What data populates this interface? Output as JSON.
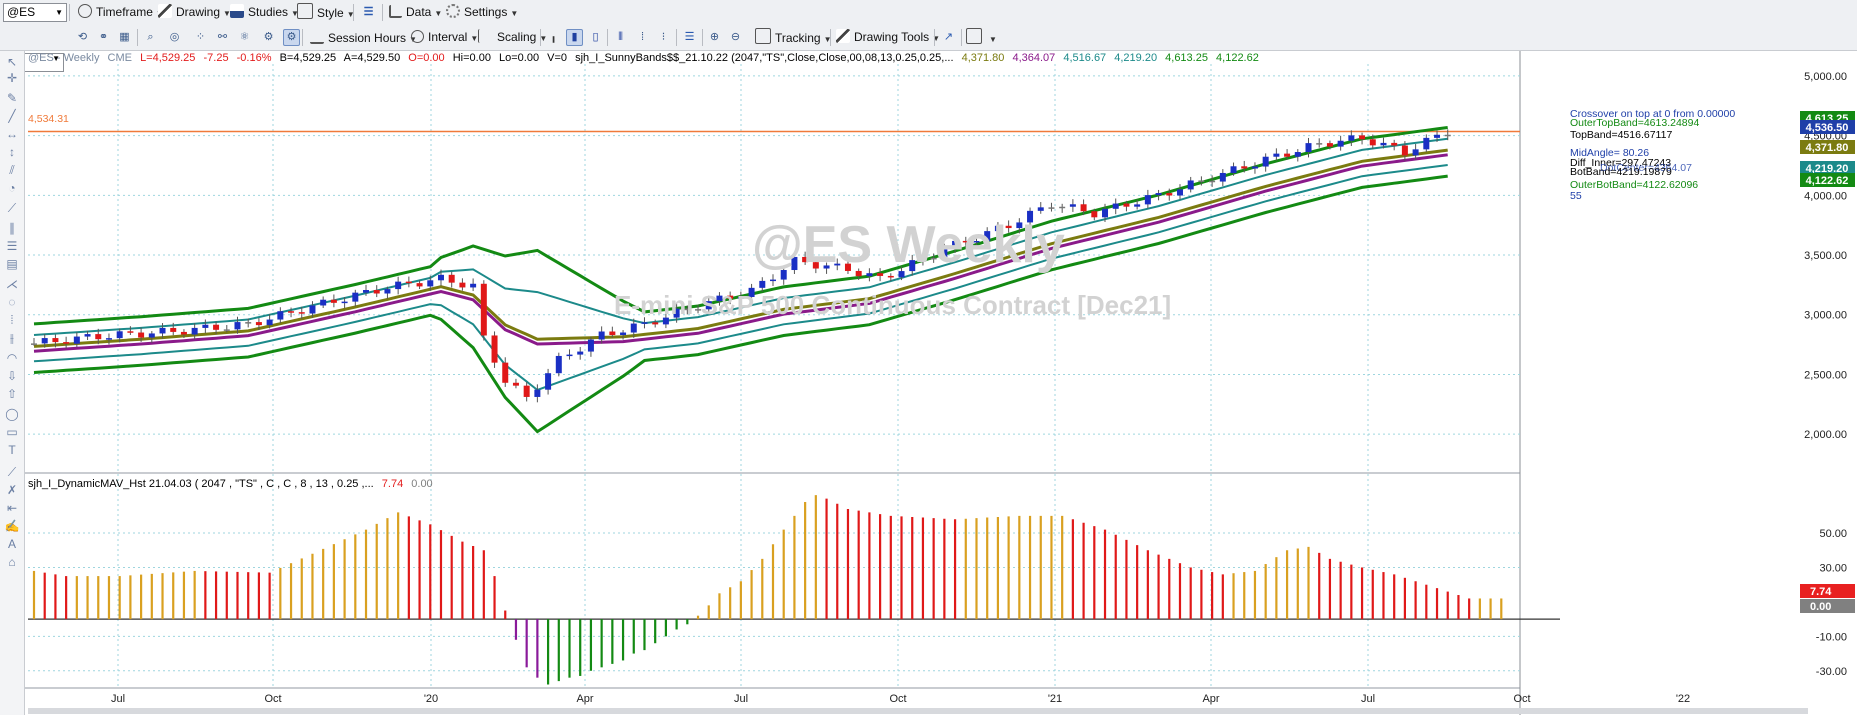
{
  "toolbar": {
    "symbol": "@ES",
    "items": [
      {
        "label": "Timeframe",
        "icon": "clock-icon"
      },
      {
        "label": "Drawing",
        "icon": "pencil-icon"
      },
      {
        "label": "Studies",
        "icon": "studies-icon"
      },
      {
        "label": "Style",
        "icon": "style-icon"
      },
      {
        "label": "Data",
        "icon": "data-icon"
      },
      {
        "label": "Settings",
        "icon": "gear-icon"
      }
    ],
    "row2": {
      "session_hours": "Session Hours",
      "interval": "Interval",
      "scaling": "Scaling",
      "tracking": "Tracking",
      "drawing_tools": "Drawing Tools"
    }
  },
  "header": {
    "symbol_line": "@ES - Weekly",
    "exchange": "CME",
    "last": "L=4,529.25",
    "chg": "-7.25",
    "chgpct": "-0.16%",
    "bid": "B=4,529.25",
    "ask": "A=4,529.50",
    "open": "O=0.00",
    "hi": "Hi=0.00",
    "lo": "Lo=0.00",
    "vol": "V=0",
    "study": "sjh_I_SunnyBands$$_21.10.22 (2047,\"TS\",Close,Close,00,08,13,0.25,0.25,...",
    "v1": "4,371.80",
    "v2": "4,364.07",
    "v3": "4,516.67",
    "v4": "4,219.20",
    "v5": "4,613.25",
    "v6": "4,122.62"
  },
  "watermark": {
    "title": "@ES Weekly",
    "subtitle": "E-mini S&P 500 Continuous Contract [Dec21]"
  },
  "hline_label": "4,534.31",
  "plot_labels": {
    "crossover": "Crossover  on top at 0 from 0.00000",
    "outer_top": "OuterTopBand=4613.24894",
    "top": "TopBand=4516.67117",
    "mid_angle": "MidAngle= 80.26",
    "diff_inner": "Diff_Inner=297.47243",
    "dot_center": "DotCenter=4364.07",
    "bot": "BotBand=4219.19879",
    "outer_bot": "OuterBotBand=4122.62096",
    "n": "55"
  },
  "subpanel": {
    "title": "sjh_I_DynamicMAV_Hst 21.04.03 ( 2047 , \"TS\" , C , C ,  8 , 13 , 0.25 ,...",
    "v1": "7.74",
    "v2": "0.00"
  },
  "price_axis": {
    "ticks": [
      "5,000.00",
      "4,500.00",
      "4,000.00",
      "3,500.00",
      "3,000.00",
      "2,500.00",
      "2,000.00"
    ],
    "badges": [
      {
        "text": "4,613.25",
        "color": "#138a13"
      },
      {
        "text": "4,536.50",
        "color": "#1f3fa8"
      },
      {
        "text": "4,371.80",
        "color": "#7b7b10"
      },
      {
        "text": "4,219.20",
        "color": "#1c8a8a"
      },
      {
        "text": "4,122.62",
        "color": "#138a13"
      }
    ]
  },
  "sub_axis": {
    "ticks": [
      "50.00",
      "30.00",
      "-10.00",
      "-30.00"
    ],
    "badges": [
      {
        "text": "7.74",
        "color": "#e82020"
      },
      {
        "text": "0.00",
        "color": "#808080"
      }
    ]
  },
  "time_axis": [
    "Jul",
    "Oct",
    "'20",
    "Apr",
    "Jul",
    "Oct",
    "'21",
    "Apr",
    "Jul",
    "Oct",
    "'22"
  ],
  "chart_data": {
    "type": "candlestick",
    "price_range": [
      1700,
      5200
    ],
    "bars": 105,
    "close_path": [
      [
        0,
        2760
      ],
      [
        6,
        2820
      ],
      [
        13,
        2860
      ],
      [
        20,
        2920
      ],
      [
        26,
        3070
      ],
      [
        33,
        3230
      ],
      [
        38,
        3300
      ],
      [
        41,
        3240
      ],
      [
        42,
        2800
      ],
      [
        44,
        2450
      ],
      [
        46,
        2300
      ],
      [
        49,
        2620
      ],
      [
        53,
        2830
      ],
      [
        57,
        2920
      ],
      [
        62,
        3080
      ],
      [
        67,
        3200
      ],
      [
        71,
        3450
      ],
      [
        76,
        3380
      ],
      [
        79,
        3300
      ],
      [
        85,
        3550
      ],
      [
        91,
        3750
      ],
      [
        95,
        3930
      ],
      [
        99,
        3850
      ],
      [
        105,
        4000
      ],
      [
        110,
        4150
      ],
      [
        115,
        4300
      ],
      [
        120,
        4430
      ],
      [
        124,
        4480
      ],
      [
        128,
        4360
      ],
      [
        132,
        4540
      ]
    ],
    "mid_path": [
      [
        0,
        2720
      ],
      [
        10,
        2780
      ],
      [
        20,
        2850
      ],
      [
        30,
        3050
      ],
      [
        38,
        3220
      ],
      [
        41,
        3150
      ],
      [
        44,
        2900
      ],
      [
        47,
        2780
      ],
      [
        55,
        2800
      ],
      [
        62,
        2870
      ],
      [
        70,
        3030
      ],
      [
        78,
        3120
      ],
      [
        86,
        3330
      ],
      [
        95,
        3580
      ],
      [
        105,
        3800
      ],
      [
        115,
        4060
      ],
      [
        124,
        4270
      ],
      [
        132,
        4364
      ]
    ],
    "sub_series": {
      "start": 0,
      "pos": [
        [
          0,
          28
        ],
        [
          3,
          25
        ],
        [
          8,
          25
        ],
        [
          15,
          28
        ],
        [
          22,
          27
        ],
        [
          26,
          38
        ],
        [
          31,
          52
        ],
        [
          34,
          62
        ],
        [
          37,
          55
        ],
        [
          40,
          45
        ],
        [
          42,
          40
        ],
        [
          43,
          25
        ],
        [
          44,
          5
        ]
      ],
      "neg": [
        [
          45,
          -12
        ],
        [
          46,
          -28
        ],
        [
          47,
          -34
        ],
        [
          48,
          -38
        ],
        [
          49,
          -36
        ],
        [
          50,
          -34
        ],
        [
          51,
          -33
        ],
        [
          52,
          -30
        ],
        [
          53,
          -28
        ],
        [
          54,
          -26
        ],
        [
          55,
          -24
        ],
        [
          56,
          -20
        ],
        [
          57,
          -18
        ],
        [
          58,
          -14
        ],
        [
          59,
          -10
        ],
        [
          60,
          -6
        ],
        [
          61,
          -3
        ]
      ],
      "pos2": [
        [
          62,
          2
        ],
        [
          63,
          8
        ],
        [
          64,
          15
        ],
        [
          66,
          22
        ],
        [
          68,
          35
        ],
        [
          70,
          52
        ],
        [
          72,
          68
        ],
        [
          73,
          72
        ],
        [
          74,
          70
        ],
        [
          76,
          64
        ],
        [
          80,
          60
        ],
        [
          86,
          58
        ],
        [
          92,
          60
        ],
        [
          96,
          60
        ],
        [
          100,
          52
        ],
        [
          104,
          40
        ],
        [
          108,
          30
        ],
        [
          111,
          26
        ],
        [
          114,
          28
        ],
        [
          117,
          40
        ],
        [
          119,
          42
        ],
        [
          121,
          35
        ],
        [
          124,
          30
        ],
        [
          127,
          26
        ],
        [
          130,
          20
        ],
        [
          134,
          12
        ],
        [
          138,
          12
        ]
      ]
    }
  }
}
